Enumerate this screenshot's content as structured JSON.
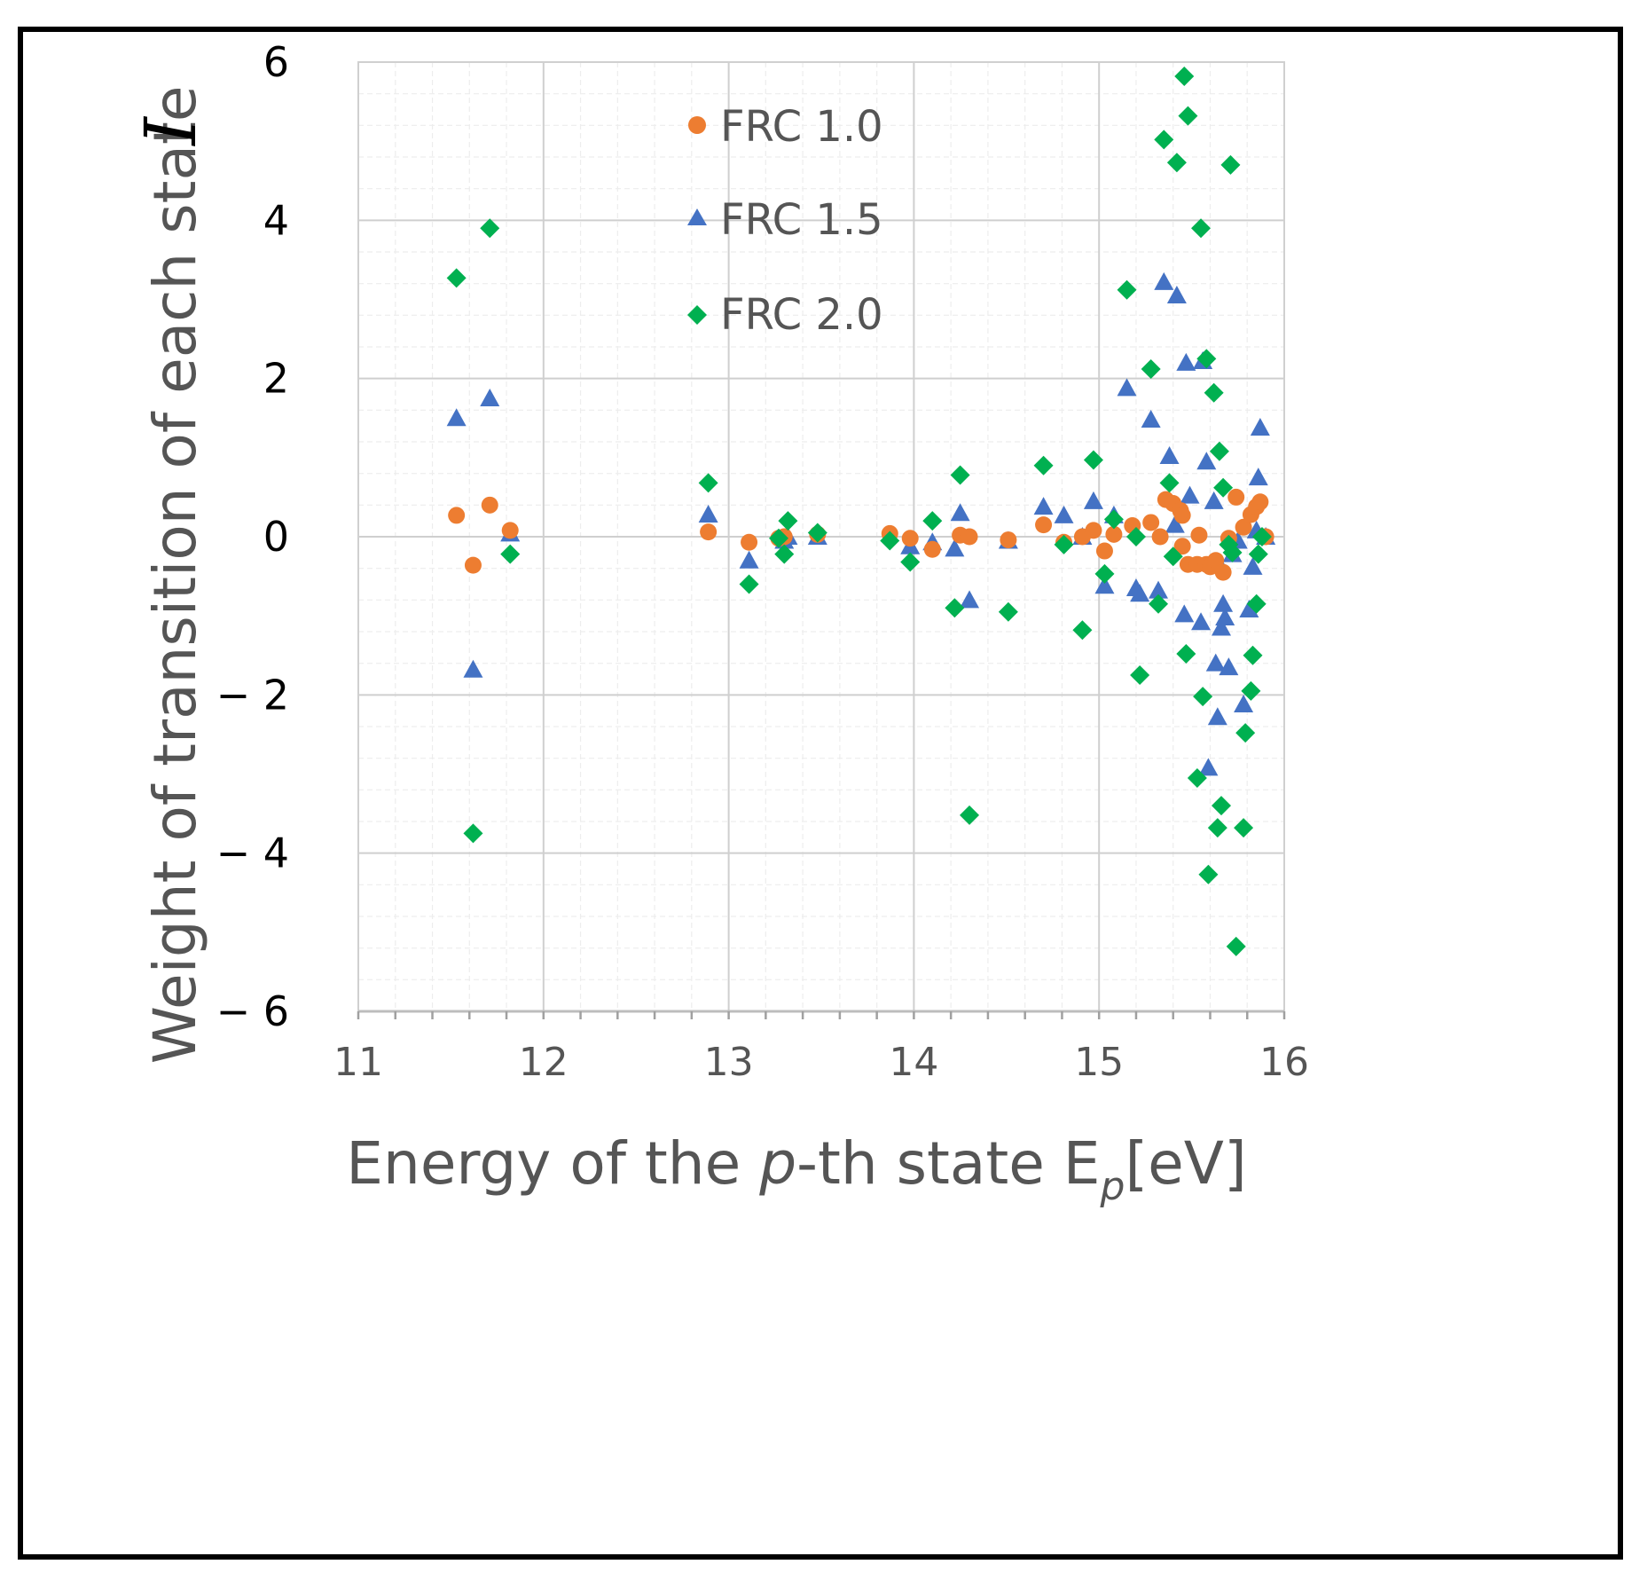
{
  "chart_data": {
    "type": "scatter",
    "title": "",
    "xlabel": {
      "prefix": "Energy of the ",
      "italic": "p",
      "middle": "-th state E",
      "subscript": "p",
      "suffix": "[eV]"
    },
    "ylabel": {
      "text": "Weight of transition of each state",
      "symbol": "I"
    },
    "xlim": [
      11,
      16
    ],
    "ylim": [
      -6,
      6
    ],
    "x_ticks": [
      "11",
      "12",
      "13",
      "14",
      "15",
      "16"
    ],
    "y_ticks": [
      "6",
      "4",
      "2",
      "0",
      "− 2",
      "− 4",
      "− 6"
    ],
    "y_tick_values": [
      6,
      4,
      2,
      0,
      -2,
      -4,
      -6
    ],
    "grid": true,
    "legend_position": "top-center",
    "series": [
      {
        "name": "FRC 1.0",
        "marker": "circle",
        "color": "#ED7D31",
        "points": [
          [
            11.53,
            0.27
          ],
          [
            11.62,
            -0.36
          ],
          [
            11.71,
            0.4
          ],
          [
            11.82,
            0.08
          ],
          [
            12.89,
            0.06
          ],
          [
            13.11,
            -0.07
          ],
          [
            13.27,
            -0.02
          ],
          [
            13.3,
            0.0
          ],
          [
            13.48,
            0.03
          ],
          [
            13.87,
            0.04
          ],
          [
            13.98,
            -0.02
          ],
          [
            14.1,
            -0.16
          ],
          [
            14.25,
            0.02
          ],
          [
            14.3,
            0.0
          ],
          [
            14.51,
            -0.04
          ],
          [
            14.7,
            0.15
          ],
          [
            14.81,
            -0.07
          ],
          [
            14.91,
            0.0
          ],
          [
            14.97,
            0.08
          ],
          [
            15.03,
            -0.18
          ],
          [
            15.08,
            0.03
          ],
          [
            15.18,
            0.14
          ],
          [
            15.28,
            0.18
          ],
          [
            15.33,
            0.0
          ],
          [
            15.36,
            0.47
          ],
          [
            15.4,
            0.42
          ],
          [
            15.44,
            0.33
          ],
          [
            15.45,
            0.27
          ],
          [
            15.45,
            -0.12
          ],
          [
            15.48,
            -0.35
          ],
          [
            15.53,
            -0.35
          ],
          [
            15.54,
            0.02
          ],
          [
            15.58,
            -0.35
          ],
          [
            15.6,
            -0.38
          ],
          [
            15.63,
            -0.3
          ],
          [
            15.67,
            -0.45
          ],
          [
            15.7,
            -0.02
          ],
          [
            15.74,
            0.5
          ],
          [
            15.78,
            0.12
          ],
          [
            15.82,
            0.28
          ],
          [
            15.85,
            0.38
          ],
          [
            15.87,
            0.44
          ],
          [
            15.9,
            0.0
          ]
        ]
      },
      {
        "name": "FRC 1.5",
        "marker": "triangle",
        "color": "#4472C4",
        "points": [
          [
            11.53,
            1.5
          ],
          [
            11.62,
            -1.68
          ],
          [
            11.71,
            1.75
          ],
          [
            11.82,
            0.04
          ],
          [
            12.89,
            0.28
          ],
          [
            13.11,
            -0.3
          ],
          [
            13.3,
            -0.05
          ],
          [
            13.32,
            0.0
          ],
          [
            13.48,
            0.0
          ],
          [
            13.98,
            -0.12
          ],
          [
            14.1,
            -0.07
          ],
          [
            14.22,
            -0.15
          ],
          [
            14.25,
            0.3
          ],
          [
            14.3,
            -0.8
          ],
          [
            14.51,
            -0.05
          ],
          [
            14.7,
            0.38
          ],
          [
            14.81,
            0.27
          ],
          [
            14.91,
            0.0
          ],
          [
            14.97,
            0.45
          ],
          [
            15.03,
            -0.62
          ],
          [
            15.08,
            0.27
          ],
          [
            15.15,
            1.88
          ],
          [
            15.2,
            -0.65
          ],
          [
            15.22,
            -0.72
          ],
          [
            15.28,
            1.48
          ],
          [
            15.32,
            -0.68
          ],
          [
            15.35,
            3.22
          ],
          [
            15.38,
            1.02
          ],
          [
            15.41,
            0.15
          ],
          [
            15.42,
            3.05
          ],
          [
            15.46,
            -0.98
          ],
          [
            15.47,
            2.2
          ],
          [
            15.49,
            0.52
          ],
          [
            15.55,
            -1.08
          ],
          [
            15.56,
            2.22
          ],
          [
            15.58,
            0.95
          ],
          [
            15.59,
            -2.92
          ],
          [
            15.62,
            0.45
          ],
          [
            15.63,
            -1.6
          ],
          [
            15.64,
            -2.28
          ],
          [
            15.65,
            -0.35
          ],
          [
            15.66,
            -1.15
          ],
          [
            15.67,
            -0.85
          ],
          [
            15.68,
            -1.02
          ],
          [
            15.7,
            -1.65
          ],
          [
            15.72,
            -0.22
          ],
          [
            15.75,
            -0.05
          ],
          [
            15.78,
            -2.12
          ],
          [
            15.81,
            -0.92
          ],
          [
            15.83,
            -0.38
          ],
          [
            15.85,
            0.08
          ],
          [
            15.86,
            0.75
          ],
          [
            15.87,
            1.38
          ],
          [
            15.9,
            0.0
          ]
        ]
      },
      {
        "name": "FRC 2.0",
        "marker": "diamond",
        "color": "#00B050",
        "points": [
          [
            11.53,
            3.27
          ],
          [
            11.62,
            -3.75
          ],
          [
            11.71,
            3.9
          ],
          [
            11.82,
            -0.22
          ],
          [
            12.89,
            0.68
          ],
          [
            13.11,
            -0.6
          ],
          [
            13.27,
            -0.02
          ],
          [
            13.3,
            -0.22
          ],
          [
            13.32,
            0.2
          ],
          [
            13.48,
            0.05
          ],
          [
            13.87,
            -0.05
          ],
          [
            13.98,
            -0.32
          ],
          [
            14.1,
            0.2
          ],
          [
            14.22,
            -0.9
          ],
          [
            14.25,
            0.78
          ],
          [
            14.3,
            -3.52
          ],
          [
            14.51,
            -0.95
          ],
          [
            14.7,
            0.9
          ],
          [
            14.81,
            -0.1
          ],
          [
            14.91,
            -1.18
          ],
          [
            14.97,
            0.97
          ],
          [
            15.03,
            -0.47
          ],
          [
            15.08,
            0.22
          ],
          [
            15.15,
            3.12
          ],
          [
            15.2,
            0.0
          ],
          [
            15.22,
            -1.75
          ],
          [
            15.28,
            2.12
          ],
          [
            15.32,
            -0.85
          ],
          [
            15.35,
            5.02
          ],
          [
            15.38,
            0.68
          ],
          [
            15.4,
            -0.25
          ],
          [
            15.42,
            4.73
          ],
          [
            15.46,
            5.82
          ],
          [
            15.47,
            -1.48
          ],
          [
            15.48,
            5.32
          ],
          [
            15.53,
            -3.05
          ],
          [
            15.55,
            3.9
          ],
          [
            15.56,
            -2.02
          ],
          [
            15.58,
            2.25
          ],
          [
            15.59,
            -4.27
          ],
          [
            15.62,
            1.82
          ],
          [
            15.64,
            -3.68
          ],
          [
            15.65,
            1.08
          ],
          [
            15.66,
            -3.4
          ],
          [
            15.67,
            0.62
          ],
          [
            15.7,
            -0.1
          ],
          [
            15.71,
            4.7
          ],
          [
            15.72,
            -0.2
          ],
          [
            15.74,
            -5.18
          ],
          [
            15.78,
            -3.68
          ],
          [
            15.79,
            -2.48
          ],
          [
            15.82,
            -1.95
          ],
          [
            15.83,
            -1.5
          ],
          [
            15.85,
            -0.85
          ],
          [
            15.86,
            -0.22
          ],
          [
            15.88,
            0.0
          ]
        ]
      }
    ]
  }
}
